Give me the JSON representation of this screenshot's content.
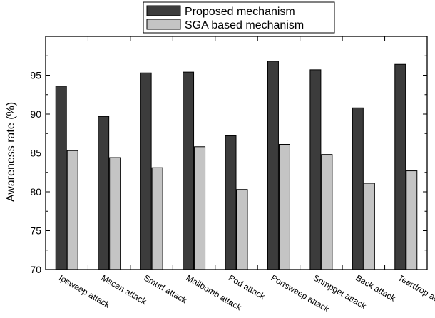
{
  "chart_data": {
    "type": "bar",
    "title": "",
    "xlabel": "",
    "ylabel": "Awareness rate (%)",
    "ylim": [
      70,
      100
    ],
    "yticks": [
      70,
      75,
      80,
      85,
      90,
      95
    ],
    "grid": false,
    "legend_position": "top-center",
    "categories": [
      "Ipsweep attack",
      "Mscan attack",
      "Smurf attack",
      "Mailbomb attack",
      "Pod attack",
      "Portsweep attack",
      "Snmpget attack",
      "Back attack",
      "Teardrop attack"
    ],
    "series": [
      {
        "name": "Proposed mechanism",
        "color": "#3c3c3c",
        "values": [
          93.6,
          89.7,
          95.3,
          95.4,
          87.2,
          96.8,
          95.7,
          90.8,
          96.4
        ]
      },
      {
        "name": "SGA based mechanism",
        "color": "#c4c4c4",
        "values": [
          85.3,
          84.4,
          83.1,
          85.8,
          80.3,
          86.1,
          84.8,
          81.1,
          82.7
        ]
      }
    ]
  }
}
